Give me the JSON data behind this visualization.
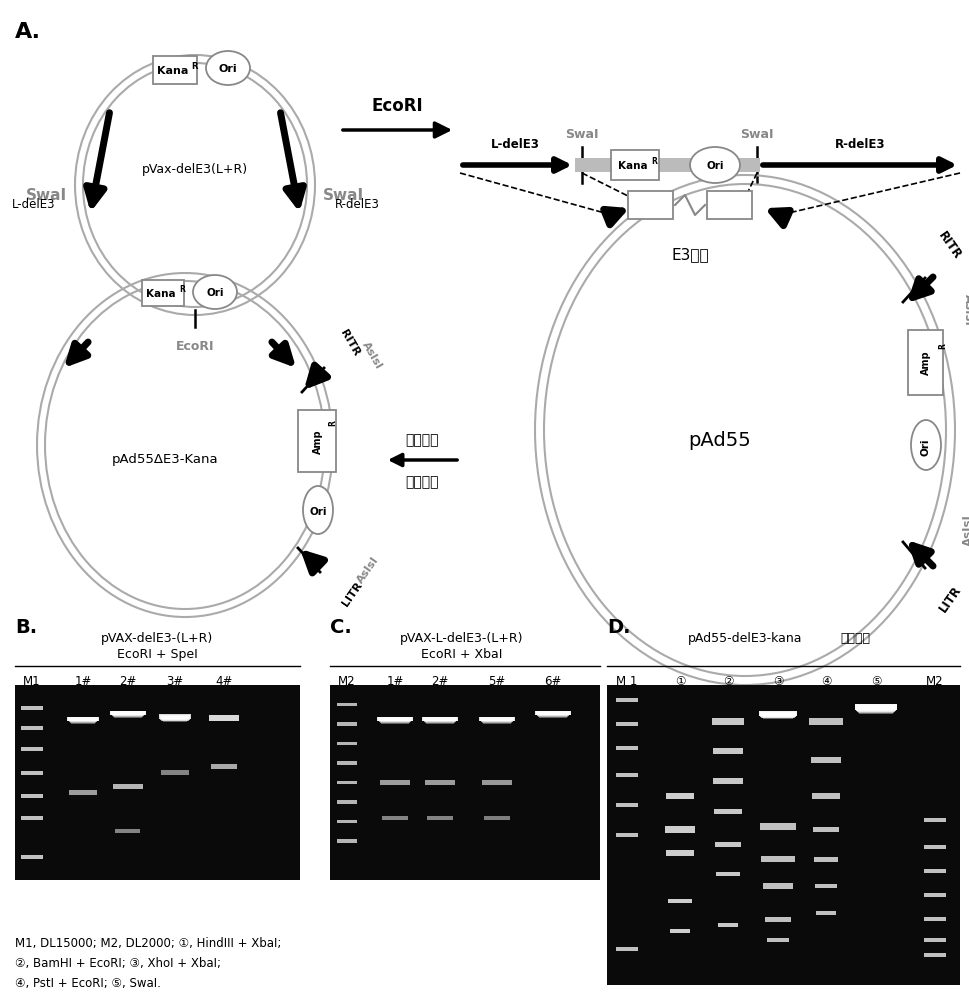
{
  "bg_color": "#ffffff",
  "gray_circle": "#aaaaaa",
  "black": "#000000",
  "dark_gray": "#888888",
  "footnote": "M1, DL15000; M2, DL2000; ①, HindIII + XbaI;\n②, BamHI + EcoRI; ③, XhoI + XbaI;\n④, PstI + EcoRI; ⑤, SwaI.",
  "gel_B_title1": "pVAX-delE3-(L+R)",
  "gel_B_title2": "EcoRI + SpeI",
  "gel_C_title1": "pVAX-L-delE3-(L+R)",
  "gel_C_title2": "EcoRI + XbaI",
  "gel_D_title1": "pAd55-delE3-kana",
  "gel_D_title2": "酶切鉴定",
  "homologous_label1": "同源重组",
  "homologous_label2": "双抗筛选"
}
